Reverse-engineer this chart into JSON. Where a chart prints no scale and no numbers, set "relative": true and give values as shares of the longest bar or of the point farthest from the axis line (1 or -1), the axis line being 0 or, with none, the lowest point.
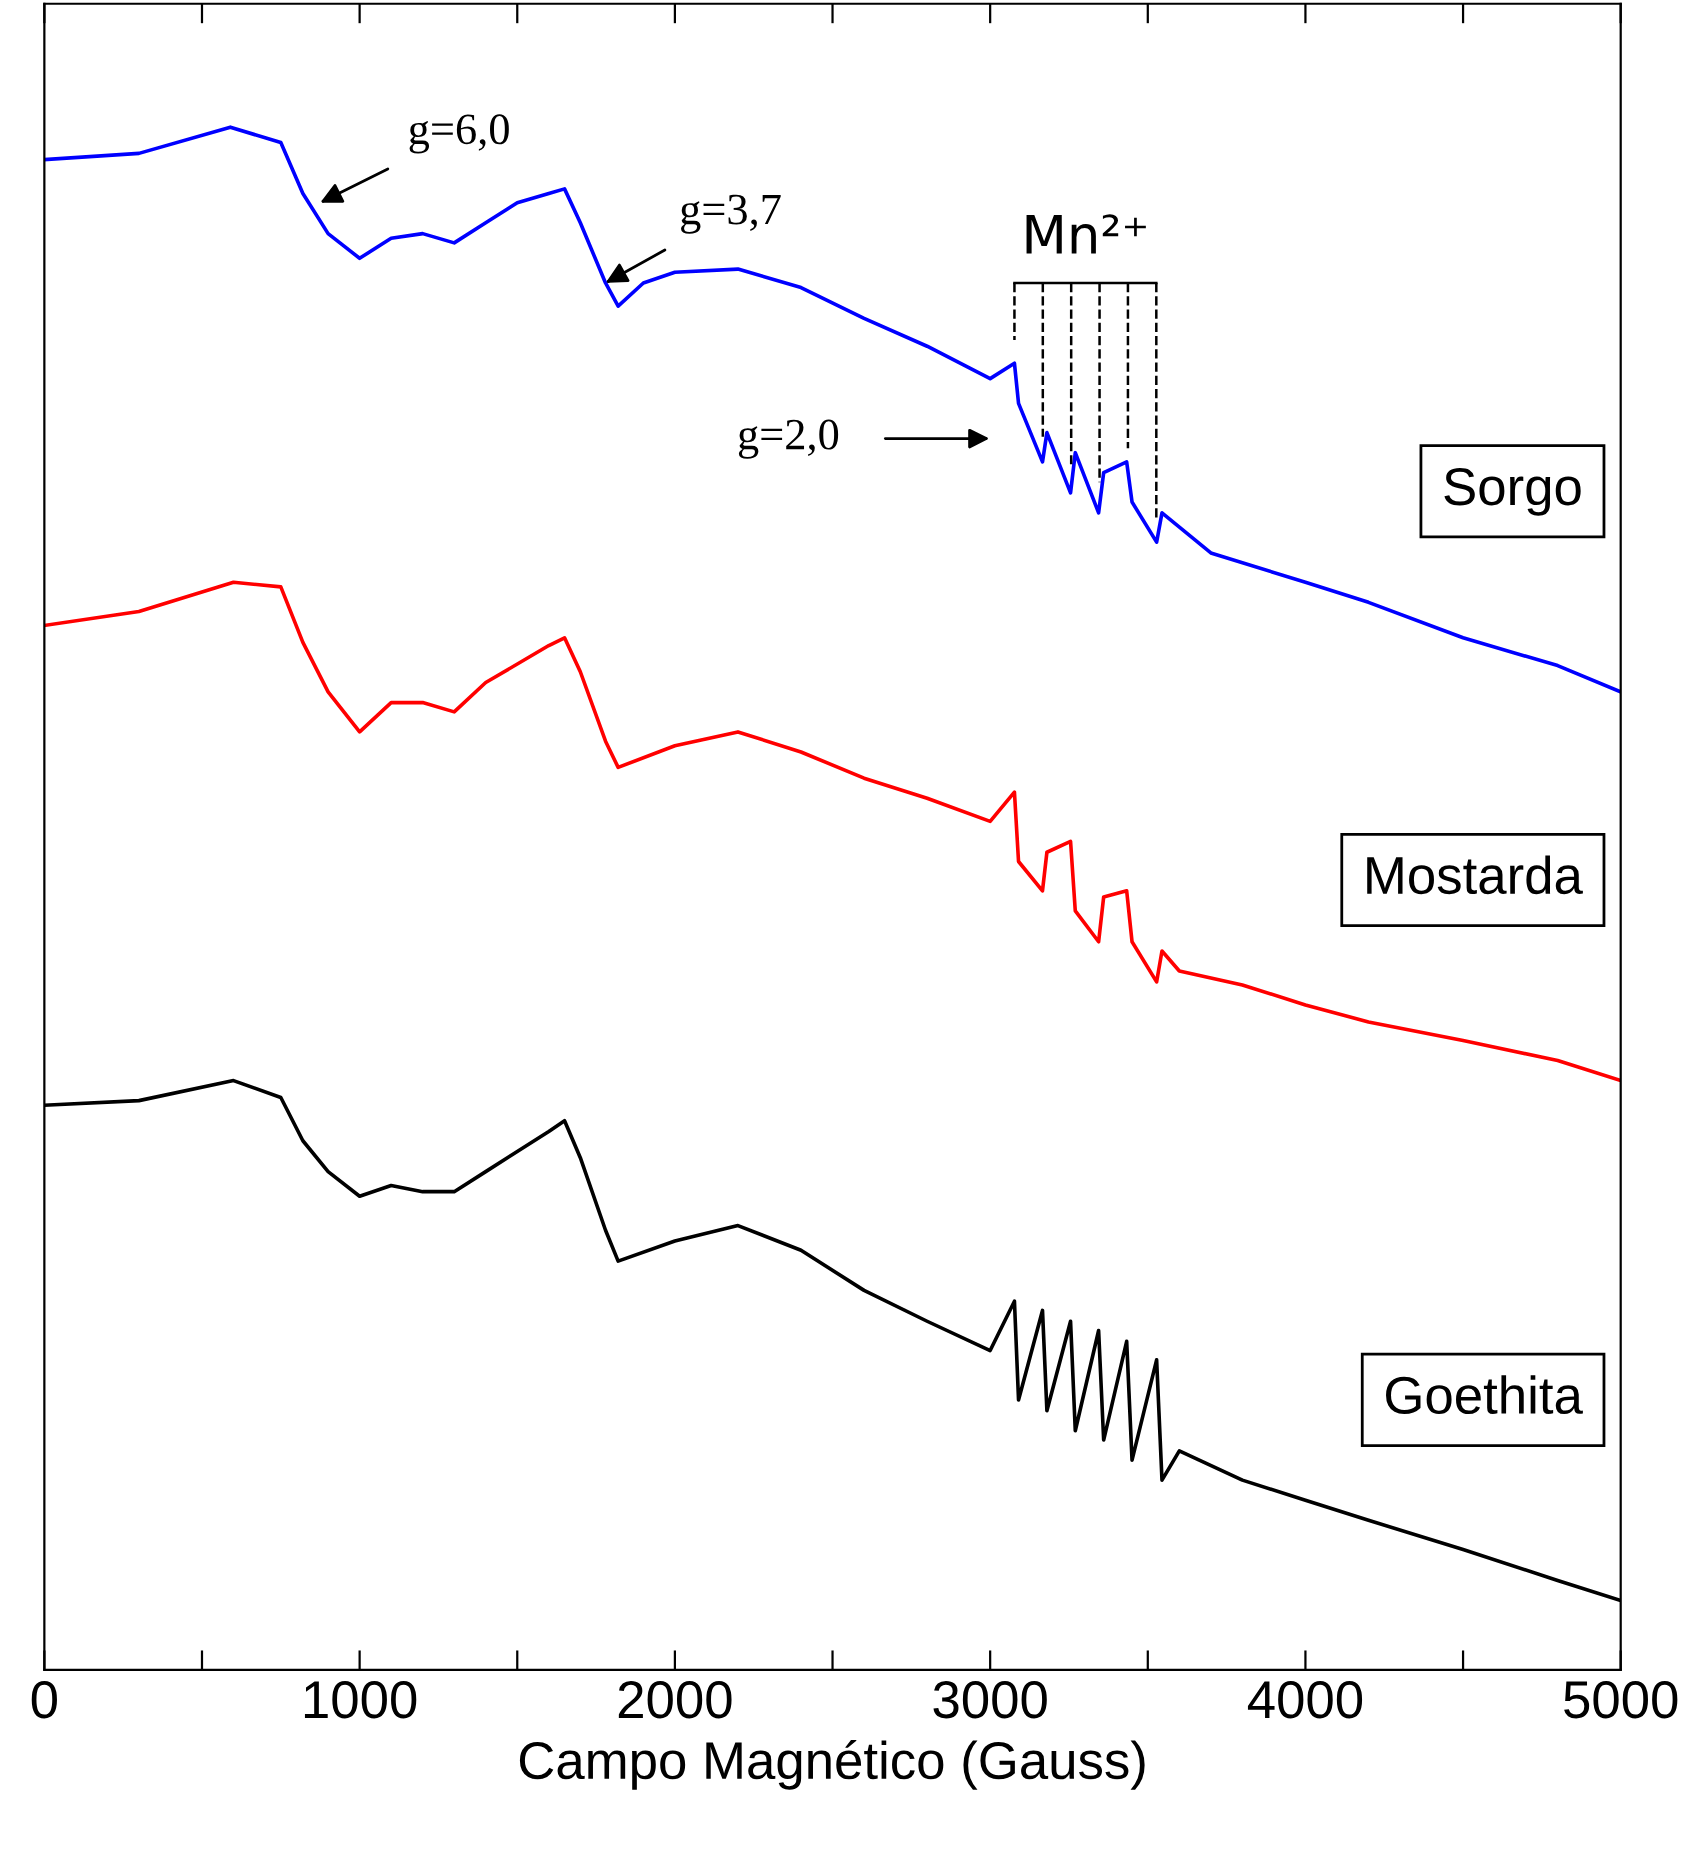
{
  "chart_data": {
    "type": "line",
    "xlabel": "Campo Magnético (Gauss)",
    "relative": true,
    "legend": false,
    "grid": false,
    "tick_labels": "x",
    "xlim": [
      0,
      5000
    ],
    "xticks": [
      0,
      {
        "value": 500,
        "label": null
      },
      1000,
      {
        "value": 1500,
        "label": null
      },
      2000,
      {
        "value": 2500,
        "label": null
      },
      3000,
      {
        "value": 3500,
        "label": null
      },
      4000,
      {
        "value": 4500,
        "label": null
      },
      5000
    ],
    "series": [
      {
        "name": "Sorgo",
        "color": "#0000ff",
        "x": [
          0,
          300,
          590,
          750,
          820,
          900,
          1000,
          1100,
          1200,
          1300,
          1400,
          1500,
          1600,
          1650,
          1700,
          1780,
          1820,
          1900,
          2000,
          2200,
          2400,
          2600,
          2800,
          3000,
          3077,
          3090,
          3166,
          3180,
          3255,
          3270,
          3344,
          3360,
          3433,
          3450,
          3528,
          3545,
          3700,
          4000,
          4200,
          4500,
          4800,
          5000
        ],
        "values": [
          0.979,
          0.983,
          1.0,
          0.99,
          0.957,
          0.931,
          0.915,
          0.928,
          0.931,
          0.925,
          0.938,
          0.951,
          0.957,
          0.96,
          0.938,
          0.899,
          0.884,
          0.899,
          0.906,
          0.908,
          0.896,
          0.876,
          0.858,
          0.837,
          0.847,
          0.821,
          0.783,
          0.802,
          0.763,
          0.789,
          0.75,
          0.776,
          0.783,
          0.757,
          0.731,
          0.75,
          0.724,
          0.705,
          0.692,
          0.669,
          0.651,
          0.634
        ]
      },
      {
        "name": "Mostarda",
        "color": "#ff0000",
        "x": [
          0,
          300,
          600,
          750,
          820,
          900,
          1000,
          1100,
          1200,
          1300,
          1400,
          1600,
          1650,
          1700,
          1780,
          1820,
          2000,
          2200,
          2400,
          2600,
          2800,
          3000,
          3077,
          3090,
          3166,
          3180,
          3255,
          3270,
          3344,
          3360,
          3433,
          3450,
          3528,
          3545,
          3600,
          3800,
          4000,
          4200,
          4500,
          4800,
          5000
        ],
        "values": [
          0.677,
          0.686,
          0.705,
          0.702,
          0.666,
          0.634,
          0.608,
          0.627,
          0.627,
          0.621,
          0.64,
          0.664,
          0.669,
          0.647,
          0.602,
          0.585,
          0.599,
          0.608,
          0.595,
          0.578,
          0.565,
          0.55,
          0.569,
          0.524,
          0.505,
          0.53,
          0.537,
          0.492,
          0.472,
          0.501,
          0.505,
          0.472,
          0.446,
          0.466,
          0.453,
          0.444,
          0.431,
          0.42,
          0.408,
          0.395,
          0.382
        ]
      },
      {
        "name": "Goethita",
        "color": "#000000",
        "x": [
          0,
          300,
          600,
          750,
          820,
          900,
          1000,
          1100,
          1200,
          1300,
          1400,
          1500,
          1600,
          1650,
          1700,
          1780,
          1820,
          2000,
          2200,
          2400,
          2600,
          2800,
          3000,
          3077,
          3090,
          3166,
          3180,
          3255,
          3270,
          3344,
          3360,
          3433,
          3450,
          3528,
          3545,
          3600,
          3800,
          4000,
          4200,
          4500,
          4800,
          5000
        ],
        "values": [
          0.366,
          0.369,
          0.382,
          0.371,
          0.343,
          0.323,
          0.307,
          0.314,
          0.31,
          0.31,
          0.323,
          0.336,
          0.349,
          0.356,
          0.332,
          0.285,
          0.265,
          0.278,
          0.288,
          0.272,
          0.246,
          0.226,
          0.207,
          0.239,
          0.175,
          0.233,
          0.168,
          0.226,
          0.155,
          0.22,
          0.149,
          0.213,
          0.136,
          0.201,
          0.123,
          0.142,
          0.123,
          0.11,
          0.097,
          0.078,
          0.058,
          0.045
        ]
      }
    ],
    "annotations": [
      {
        "text": "g=6,0",
        "x": 875,
        "y": 0.951
      },
      {
        "text": "g=3,7",
        "x": 1780,
        "y": 0.899
      },
      "g=2,0",
      {
        "text": "Mn²⁺",
        "x": 3077,
        "y": 0.847
      }
    ]
  }
}
